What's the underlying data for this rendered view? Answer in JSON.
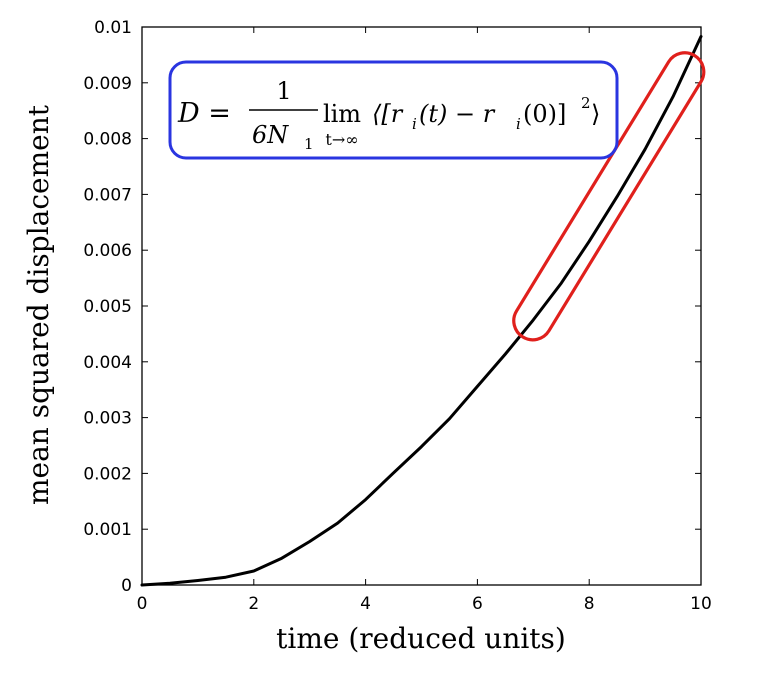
{
  "chart_data": {
    "type": "line",
    "xlabel": "time (reduced units)",
    "ylabel": "mean squared displacement",
    "xlim": [
      0,
      10
    ],
    "ylim": [
      0,
      0.01
    ],
    "x_ticks": [
      "0",
      "2",
      "4",
      "6",
      "8",
      "10"
    ],
    "y_ticks": [
      "0",
      "0.001",
      "0.002",
      "0.003",
      "0.004",
      "0.005",
      "0.006",
      "0.007",
      "0.008",
      "0.009",
      "0.01"
    ],
    "series": [
      {
        "color": "#000000",
        "x": [
          0,
          0.5,
          1,
          1.5,
          2,
          2.5,
          3,
          3.5,
          4,
          4.5,
          5,
          5.5,
          6,
          6.5,
          7,
          7.5,
          8,
          8.5,
          9,
          9.5,
          10
        ],
        "y": [
          0,
          3e-05,
          8e-05,
          0.00014,
          0.00025,
          0.00048,
          0.00078,
          0.00111,
          0.00153,
          0.00201,
          0.00248,
          0.00298,
          0.00356,
          0.00414,
          0.00475,
          0.00541,
          0.00616,
          0.00696,
          0.00781,
          0.00875,
          0.00983
        ]
      }
    ],
    "annotations": {
      "formula": {
        "lhs": "D =",
        "numerator": "1",
        "denominator": "6N",
        "denominator_sub": "1",
        "lim": "lim",
        "lim_sub": "t→∞",
        "bracket_open": "⟨[r",
        "r_sub": "i",
        "t_part": "(t) − r",
        "r_sub2": "i",
        "zero_part": "(0)]",
        "exponent": "2",
        "bracket_close": "⟩",
        "box_color": "#2a35e0"
      },
      "highlight": {
        "color": "#e0201c",
        "x_start": 7.0,
        "x_end": 9.7
      }
    }
  }
}
